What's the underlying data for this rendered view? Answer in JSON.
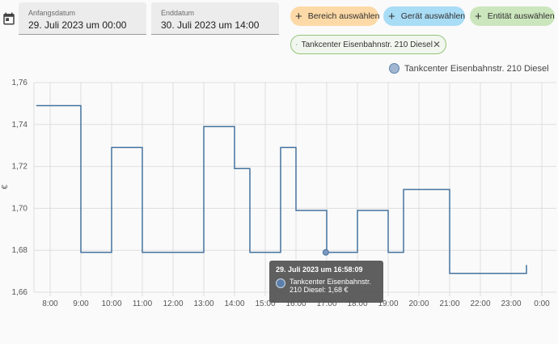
{
  "date_range": {
    "start_label": "Anfangsdatum",
    "start_value": "29. Juli 2023 um 00:00",
    "end_label": "Enddatum",
    "end_value": "30. Juli 2023 um 14:00"
  },
  "targets": {
    "area_label": "Bereich auswählen",
    "device_label": "Gerät auswählen",
    "entity_label": "Entität auswählen",
    "selected_entity": "Tankcenter Eisenbahnstr. 210 Diesel",
    "area_color": "#fcd9a6",
    "device_color": "#a9dcf5",
    "entity_color": "#cbe6bd"
  },
  "chart_data": {
    "type": "line",
    "step": true,
    "ylabel": "€",
    "ylim": [
      1.66,
      1.76
    ],
    "y_ticks": [
      "1,66",
      "1,68",
      "1,70",
      "1,72",
      "1,74",
      "1,76"
    ],
    "x_ticks": [
      "8:00",
      "9:00",
      "10:00",
      "11:00",
      "12:00",
      "13:00",
      "14:00",
      "15:00",
      "16:00",
      "17:00",
      "18:00",
      "19:00",
      "20:00",
      "21:00",
      "22:00",
      "23:00",
      "0:00"
    ],
    "series": [
      {
        "name": "Tankcenter Eisenbahnstr. 210 Diesel",
        "color": "#44739e",
        "points": [
          [
            7.55,
            1.749
          ],
          [
            9.0,
            1.679
          ],
          [
            10.0,
            1.729
          ],
          [
            11.0,
            1.679
          ],
          [
            13.0,
            1.739
          ],
          [
            14.0,
            1.719
          ],
          [
            14.5,
            1.679
          ],
          [
            15.5,
            1.729
          ],
          [
            16.0,
            1.699
          ],
          [
            17.0,
            1.679
          ],
          [
            18.0,
            1.699
          ],
          [
            19.0,
            1.679
          ],
          [
            19.5,
            1.709
          ],
          [
            21.0,
            1.669
          ],
          [
            23.5,
            1.673
          ]
        ]
      }
    ],
    "grid": true,
    "legend": "top-right"
  },
  "tooltip": {
    "title": "29. Juli 2023 um 16:58:09",
    "text": "Tankcenter Eisenbahnstr. 210 Diesel: 1,68 €",
    "point": [
      16.97,
      1.679
    ]
  }
}
